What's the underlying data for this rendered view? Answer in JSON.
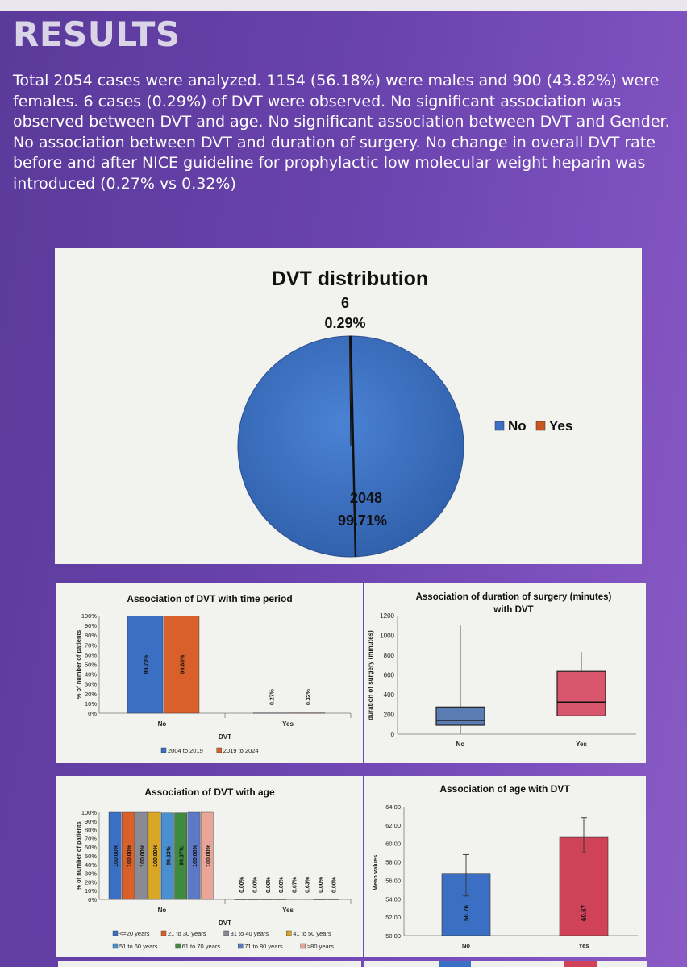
{
  "page": {
    "heading": "RESULTS",
    "intro": "Total 2054 cases were analyzed. 1154 (56.18%) were males and 900 (43.82%) were females. 6 cases (0.29%) of DVT were observed. No significant association was observed between DVT and age. No significant association between DVT and Gender. No association between DVT and duration of surgery. No change in overall DVT rate before and after NICE guideline for prophylactic low molecular weight heparin was introduced (0.27% vs 0.32%)"
  },
  "chart_data": [
    {
      "type": "pie",
      "title": "DVT distribution",
      "slices": [
        {
          "label": "No",
          "value": 2048,
          "percent_label": "99.71%",
          "color": "#3b6fc4"
        },
        {
          "label": "Yes",
          "value": 6,
          "percent_label": "0.29%",
          "color": "#c8551f"
        }
      ],
      "legend": {
        "position": "right",
        "entries": [
          "No",
          "Yes"
        ]
      }
    },
    {
      "type": "bar",
      "title": "Association of DVT with time period",
      "categories": [
        "No",
        "Yes"
      ],
      "series": [
        {
          "name": "2004 to 2019",
          "values": [
            99.73,
            0.27
          ],
          "labels": [
            "99.73%",
            "0.27%"
          ],
          "color": "#3b6fc4"
        },
        {
          "name": "2019 to 2024",
          "values": [
            99.68,
            0.32
          ],
          "labels": [
            "99.68%",
            "0.32%"
          ],
          "color": "#d9602a"
        }
      ],
      "xlabel": "DVT",
      "ylabel": "% of number of patients",
      "ylim": [
        0,
        100
      ],
      "yticks": [
        "0%",
        "10%",
        "20%",
        "30%",
        "40%",
        "50%",
        "60%",
        "70%",
        "80%",
        "90%",
        "100%"
      ],
      "legend": "bottom"
    },
    {
      "type": "box",
      "title": "Association of duration of surgery (minutes) with DVT",
      "title_lines": [
        "Association of duration of surgery (minutes)",
        "with DVT"
      ],
      "categories": [
        "No",
        "Yes"
      ],
      "boxes": [
        {
          "category": "No",
          "min": 0,
          "q1": 90,
          "median": 140,
          "q3": 275,
          "max": 1100,
          "color": "#5b7bb3"
        },
        {
          "category": "Yes",
          "min": 180,
          "q1": 185,
          "median": 325,
          "q3": 635,
          "max": 830,
          "color": "#d9566d"
        }
      ],
      "ylabel": "duration of surgery (minutes)",
      "ylim": [
        0,
        1200
      ],
      "yticks": [
        "0",
        "200",
        "400",
        "600",
        "800",
        "1000",
        "1200"
      ]
    },
    {
      "type": "bar",
      "title": "Association of DVT with age",
      "categories": [
        "No",
        "Yes"
      ],
      "series": [
        {
          "name": "<=20 years",
          "values": [
            100.0,
            0.0
          ],
          "labels": [
            "100.00%",
            "0.00%"
          ],
          "color": "#3b6fc4"
        },
        {
          "name": "21 to 30 years",
          "values": [
            100.0,
            0.0
          ],
          "labels": [
            "100.00%",
            "0.00%"
          ],
          "color": "#d9602a"
        },
        {
          "name": "31 to 40 years",
          "values": [
            100.0,
            0.0
          ],
          "labels": [
            "100.00%",
            "0.00%"
          ],
          "color": "#8a8a95"
        },
        {
          "name": "41 to 50 years",
          "values": [
            100.0,
            0.0
          ],
          "labels": [
            "100.00%",
            "0.00%"
          ],
          "color": "#d9a625"
        },
        {
          "name": "51 to 60 years",
          "values": [
            99.33,
            0.67
          ],
          "labels": [
            "99.33%",
            "0.67%"
          ],
          "color": "#4a8fd0"
        },
        {
          "name": "61 to 70 years",
          "values": [
            99.37,
            0.63
          ],
          "labels": [
            "99.37%",
            "0.63%"
          ],
          "color": "#3f8a3f"
        },
        {
          "name": "71 to 80 years",
          "values": [
            100.0,
            0.0
          ],
          "labels": [
            "100.00%",
            "0.00%"
          ],
          "color": "#5d78c4"
        },
        {
          "name": ">80 years",
          "values": [
            100.0,
            0.0
          ],
          "labels": [
            "100.00%",
            "0.00%"
          ],
          "color": "#e8a598"
        }
      ],
      "xlabel": "DVT",
      "ylabel": "% of number of patients",
      "ylim": [
        0,
        100
      ],
      "yticks": [
        "0%",
        "10%",
        "20%",
        "30%",
        "40%",
        "50%",
        "60%",
        "70%",
        "80%",
        "90%",
        "100%"
      ],
      "legend": "bottom"
    },
    {
      "type": "bar",
      "title": "Association of age with DVT",
      "categories": [
        "No",
        "Yes"
      ],
      "values": [
        56.76,
        60.67
      ],
      "labels": [
        "56.76",
        "60.67"
      ],
      "errors": [
        {
          "low": 54.3,
          "high": 58.8
        },
        {
          "low": 59.0,
          "high": 62.8
        }
      ],
      "colors": [
        "#3b6fc4",
        "#d04257"
      ],
      "ylabel": "Mean values",
      "ylim": [
        50,
        64
      ],
      "yticks": [
        "50.00",
        "52.00",
        "54.00",
        "56.00",
        "58.00",
        "60.00",
        "62.00",
        "64.00"
      ]
    }
  ]
}
